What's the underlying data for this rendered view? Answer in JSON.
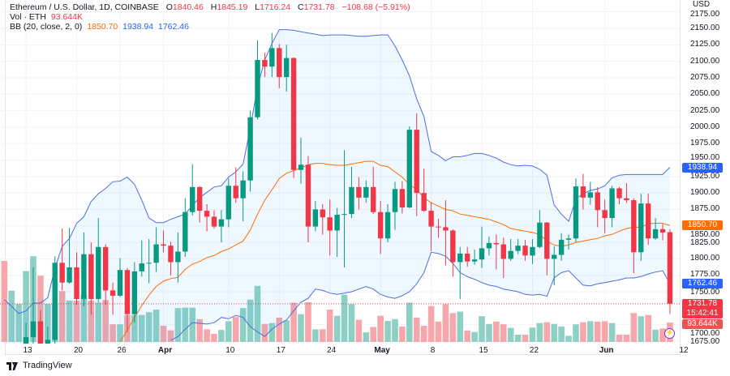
{
  "legend": {
    "symbol": "Ethereum / U.S. Dollar, 1D, COINBASE",
    "o_label": "O",
    "o": "1840.46",
    "h_label": "H",
    "h": "1845.19",
    "l_label": "L",
    "l": "1716.24",
    "c_label": "C",
    "c": "1731.78",
    "change": "−108.68 (−5.91%)",
    "vol_label": "Vol · ETH",
    "vol": "93.644K",
    "bb_label": "BB (20, close, 2, 0)",
    "bb_basis": "1850.70",
    "bb_upper": "1938.94",
    "bb_lower": "1762.46"
  },
  "axis": {
    "currency": "USD",
    "price_ticks": [
      "2175.00",
      "2150.00",
      "2125.00",
      "2100.00",
      "2075.00",
      "2050.00",
      "2025.00",
      "2000.00",
      "1975.00",
      "1950.00",
      "1925.00",
      "1900.00",
      "1875.00",
      "1850.00",
      "1825.00",
      "1800.00",
      "1775.00",
      "1750.00",
      "1700.00",
      "1675.00"
    ],
    "time_labels": [
      {
        "text": "13",
        "date": "Mar 13",
        "bold": false
      },
      {
        "text": "20",
        "date": "Mar 20",
        "bold": false
      },
      {
        "text": "26",
        "date": "Mar 26",
        "bold": false
      },
      {
        "text": "Apr",
        "date": "Apr 1",
        "bold": true
      },
      {
        "text": "10",
        "date": "Apr 10",
        "bold": false
      },
      {
        "text": "17",
        "date": "Apr 17",
        "bold": false
      },
      {
        "text": "24",
        "date": "Apr 24",
        "bold": false
      },
      {
        "text": "May",
        "date": "May 1",
        "bold": true
      },
      {
        "text": "8",
        "date": "May 8",
        "bold": false
      },
      {
        "text": "15",
        "date": "May 15",
        "bold": false
      },
      {
        "text": "22",
        "date": "May 22",
        "bold": false
      },
      {
        "text": "Jun",
        "date": "Jun 1",
        "bold": true
      },
      {
        "text": "12",
        "date": "Jun 12",
        "bold": false
      }
    ]
  },
  "badges": {
    "upper": {
      "value": "1938.94",
      "color": "#2962ff"
    },
    "basis": {
      "value": "1850.70",
      "color": "#ff6d00"
    },
    "lower": {
      "value": "1762.46",
      "color": "#2962ff"
    },
    "last": {
      "value": "1731.78",
      "countdown": "15:42:41",
      "color": "#f23645"
    },
    "volume": {
      "value": "93.644K",
      "color": "#ef5350"
    }
  },
  "colors": {
    "up": "#089981",
    "down": "#f23645",
    "vol_up": "#8fd0c5",
    "vol_down": "#f7a6ab",
    "bb_band": "#4c6fe0",
    "bb_basis": "#ff6d00",
    "bb_fill": "rgba(33,150,243,0.07)"
  },
  "brand": "TradingView",
  "chart_data": {
    "type": "candlestick",
    "title": "Ethereum / U.S. Dollar, 1D, COINBASE",
    "ylabel": "USD",
    "ylim": [
      1660,
      2180
    ],
    "volume_unit": "K ETH",
    "grid": true,
    "candles": [
      {
        "d": "Mar 10",
        "v": 390,
        "up": false
      },
      {
        "d": "Mar 11",
        "v": 247,
        "up": true
      },
      {
        "d": "Mar 12",
        "v": 183,
        "up": true
      },
      {
        "d": "Mar 13",
        "o": 1590,
        "h": 1703,
        "l": 1580,
        "c": 1681,
        "v": 341
      },
      {
        "d": "Mar 14",
        "o": 1681,
        "h": 1787,
        "l": 1660,
        "c": 1705,
        "v": 413
      },
      {
        "d": "Mar 15",
        "o": 1705,
        "h": 1723,
        "l": 1640,
        "c": 1650,
        "v": 319
      },
      {
        "d": "Mar 16",
        "o": 1650,
        "h": 1697,
        "l": 1640,
        "c": 1677,
        "v": 183
      },
      {
        "d": "Mar 17",
        "o": 1677,
        "h": 1804,
        "l": 1670,
        "c": 1794,
        "v": 183
      },
      {
        "d": "Mar 18",
        "o": 1794,
        "h": 1846,
        "l": 1752,
        "c": 1764,
        "v": 245
      },
      {
        "d": "Mar 19",
        "o": 1764,
        "h": 1847,
        "l": 1762,
        "c": 1787,
        "v": 199
      },
      {
        "d": "Mar 20",
        "o": 1787,
        "h": 1810,
        "l": 1730,
        "c": 1739,
        "v": 199
      },
      {
        "d": "Mar 21",
        "o": 1739,
        "h": 1840,
        "l": 1728,
        "c": 1807,
        "v": 228
      },
      {
        "d": "Mar 22",
        "o": 1807,
        "h": 1825,
        "l": 1715,
        "c": 1739,
        "v": 199
      },
      {
        "d": "Mar 23",
        "o": 1739,
        "h": 1862,
        "l": 1734,
        "c": 1818,
        "v": 190
      },
      {
        "d": "Mar 24",
        "o": 1818,
        "h": 1822,
        "l": 1730,
        "c": 1752,
        "v": 202
      },
      {
        "d": "Mar 25",
        "o": 1752,
        "h": 1764,
        "l": 1715,
        "c": 1744,
        "v": 85
      },
      {
        "d": "Mar 26",
        "o": 1744,
        "h": 1801,
        "l": 1742,
        "c": 1783,
        "v": 85
      },
      {
        "d": "Mar 27",
        "o": 1783,
        "h": 1786,
        "l": 1689,
        "c": 1716,
        "v": 130
      },
      {
        "d": "Mar 28",
        "o": 1716,
        "h": 1795,
        "l": 1703,
        "c": 1781,
        "v": 130
      },
      {
        "d": "Mar 29",
        "o": 1781,
        "h": 1828,
        "l": 1773,
        "c": 1793,
        "v": 130
      },
      {
        "d": "Mar 30",
        "o": 1793,
        "h": 1830,
        "l": 1763,
        "c": 1794,
        "v": 143
      },
      {
        "d": "Mar 31",
        "o": 1794,
        "h": 1848,
        "l": 1780,
        "c": 1822,
        "v": 156
      },
      {
        "d": "Apr 1",
        "o": 1822,
        "h": 1843,
        "l": 1810,
        "c": 1820,
        "v": 78
      },
      {
        "d": "Apr 2",
        "o": 1820,
        "h": 1826,
        "l": 1775,
        "c": 1795,
        "v": 56
      },
      {
        "d": "Apr 3",
        "o": 1795,
        "h": 1840,
        "l": 1764,
        "c": 1811,
        "v": 163
      },
      {
        "d": "Apr 4",
        "o": 1811,
        "h": 1892,
        "l": 1803,
        "c": 1871,
        "v": 165
      },
      {
        "d": "Apr 5",
        "o": 1871,
        "h": 1944,
        "l": 1866,
        "c": 1909,
        "v": 165
      },
      {
        "d": "Apr 6",
        "o": 1909,
        "h": 1910,
        "l": 1855,
        "c": 1873,
        "v": 110
      },
      {
        "d": "Apr 7",
        "o": 1873,
        "h": 1883,
        "l": 1842,
        "c": 1864,
        "v": 61
      },
      {
        "d": "Apr 8",
        "o": 1864,
        "h": 1874,
        "l": 1846,
        "c": 1849,
        "v": 39
      },
      {
        "d": "Apr 9",
        "o": 1849,
        "h": 1874,
        "l": 1825,
        "c": 1860,
        "v": 58
      },
      {
        "d": "Apr 10",
        "o": 1860,
        "h": 1922,
        "l": 1848,
        "c": 1911,
        "v": 100
      },
      {
        "d": "Apr 11",
        "o": 1911,
        "h": 1939,
        "l": 1885,
        "c": 1892,
        "v": 120
      },
      {
        "d": "Apr 12",
        "o": 1892,
        "h": 1933,
        "l": 1857,
        "c": 1919,
        "v": 163
      },
      {
        "d": "Apr 13",
        "o": 1919,
        "h": 2025,
        "l": 1902,
        "c": 2015,
        "v": 204
      },
      {
        "d": "Apr 14",
        "o": 2015,
        "h": 2132,
        "l": 2012,
        "c": 2102,
        "v": 270
      },
      {
        "d": "Apr 15",
        "o": 2102,
        "h": 2113,
        "l": 2076,
        "c": 2092,
        "v": 87
      },
      {
        "d": "Apr 16",
        "o": 2092,
        "h": 2143,
        "l": 2076,
        "c": 2120,
        "v": 91
      },
      {
        "d": "Apr 17",
        "o": 2120,
        "h": 2126,
        "l": 2059,
        "c": 2076,
        "v": 117
      },
      {
        "d": "Apr 18",
        "o": 2076,
        "h": 2125,
        "l": 2054,
        "c": 2105,
        "v": 104
      },
      {
        "d": "Apr 19",
        "o": 2105,
        "h": 2106,
        "l": 1923,
        "c": 1935,
        "v": 189
      },
      {
        "d": "Apr 20",
        "o": 1935,
        "h": 1984,
        "l": 1914,
        "c": 1943,
        "v": 134
      },
      {
        "d": "Apr 21",
        "o": 1943,
        "h": 1956,
        "l": 1825,
        "c": 1849,
        "v": 191
      },
      {
        "d": "Apr 22",
        "o": 1849,
        "h": 1888,
        "l": 1842,
        "c": 1875,
        "v": 61
      },
      {
        "d": "Apr 23",
        "o": 1875,
        "h": 1883,
        "l": 1837,
        "c": 1863,
        "v": 61
      },
      {
        "d": "Apr 24",
        "o": 1863,
        "h": 1890,
        "l": 1805,
        "c": 1843,
        "v": 156
      },
      {
        "d": "Apr 25",
        "o": 1843,
        "h": 1877,
        "l": 1803,
        "c": 1867,
        "v": 126
      },
      {
        "d": "Apr 26",
        "o": 1867,
        "h": 1965,
        "l": 1787,
        "c": 1868,
        "v": 228
      },
      {
        "d": "Apr 27",
        "o": 1868,
        "h": 1940,
        "l": 1862,
        "c": 1909,
        "v": 182
      },
      {
        "d": "Apr 28",
        "o": 1909,
        "h": 1924,
        "l": 1875,
        "c": 1893,
        "v": 107
      },
      {
        "d": "Apr 29",
        "o": 1893,
        "h": 1919,
        "l": 1885,
        "c": 1909,
        "v": 46
      },
      {
        "d": "Apr 30",
        "o": 1909,
        "h": 1940,
        "l": 1868,
        "c": 1871,
        "v": 72
      },
      {
        "d": "May 1",
        "o": 1871,
        "h": 1888,
        "l": 1807,
        "c": 1831,
        "v": 126
      },
      {
        "d": "May 2",
        "o": 1831,
        "h": 1883,
        "l": 1825,
        "c": 1871,
        "v": 101
      },
      {
        "d": "May 3",
        "o": 1871,
        "h": 1917,
        "l": 1844,
        "c": 1906,
        "v": 110
      },
      {
        "d": "May 4",
        "o": 1906,
        "h": 1918,
        "l": 1869,
        "c": 1878,
        "v": 74
      },
      {
        "d": "May 5",
        "o": 1878,
        "h": 2001,
        "l": 1877,
        "c": 1996,
        "v": 189
      },
      {
        "d": "May 6",
        "o": 1996,
        "h": 2021,
        "l": 1865,
        "c": 1900,
        "v": 117
      },
      {
        "d": "May 7",
        "o": 1900,
        "h": 1937,
        "l": 1871,
        "c": 1873,
        "v": 78
      },
      {
        "d": "May 8",
        "o": 1873,
        "h": 1886,
        "l": 1812,
        "c": 1849,
        "v": 173
      },
      {
        "d": "May 9",
        "o": 1849,
        "h": 1861,
        "l": 1832,
        "c": 1848,
        "v": 98
      },
      {
        "d": "May 10",
        "o": 1848,
        "h": 1889,
        "l": 1790,
        "c": 1843,
        "v": 182
      },
      {
        "d": "May 11",
        "o": 1843,
        "h": 1845,
        "l": 1773,
        "c": 1795,
        "v": 139
      },
      {
        "d": "May 12",
        "o": 1795,
        "h": 1818,
        "l": 1739,
        "c": 1808,
        "v": 146
      },
      {
        "d": "May 13",
        "o": 1808,
        "h": 1818,
        "l": 1788,
        "c": 1796,
        "v": 55
      },
      {
        "d": "May 14",
        "o": 1796,
        "h": 1814,
        "l": 1791,
        "c": 1799,
        "v": 48
      },
      {
        "d": "May 15",
        "o": 1799,
        "h": 1849,
        "l": 1786,
        "c": 1816,
        "v": 124
      },
      {
        "d": "May 16",
        "o": 1816,
        "h": 1834,
        "l": 1805,
        "c": 1824,
        "v": 87
      },
      {
        "d": "May 17",
        "o": 1824,
        "h": 1837,
        "l": 1784,
        "c": 1822,
        "v": 98
      },
      {
        "d": "May 18",
        "o": 1822,
        "h": 1832,
        "l": 1771,
        "c": 1800,
        "v": 85
      },
      {
        "d": "May 19",
        "o": 1800,
        "h": 1830,
        "l": 1797,
        "c": 1812,
        "v": 68
      },
      {
        "d": "May 20",
        "o": 1812,
        "h": 1830,
        "l": 1807,
        "c": 1820,
        "v": 35
      },
      {
        "d": "May 21",
        "o": 1820,
        "h": 1829,
        "l": 1797,
        "c": 1805,
        "v": 35
      },
      {
        "d": "May 22",
        "o": 1805,
        "h": 1830,
        "l": 1792,
        "c": 1818,
        "v": 69
      },
      {
        "d": "May 23",
        "o": 1818,
        "h": 1874,
        "l": 1816,
        "c": 1855,
        "v": 91
      },
      {
        "d": "May 24",
        "o": 1855,
        "h": 1856,
        "l": 1775,
        "c": 1800,
        "v": 95
      },
      {
        "d": "May 25",
        "o": 1800,
        "h": 1819,
        "l": 1760,
        "c": 1806,
        "v": 87
      },
      {
        "d": "May 26",
        "o": 1806,
        "h": 1839,
        "l": 1797,
        "c": 1829,
        "v": 74
      },
      {
        "d": "May 27",
        "o": 1829,
        "h": 1837,
        "l": 1814,
        "c": 1831,
        "v": 30
      },
      {
        "d": "May 28",
        "o": 1831,
        "h": 1922,
        "l": 1825,
        "c": 1910,
        "v": 85
      },
      {
        "d": "May 29",
        "o": 1910,
        "h": 1929,
        "l": 1875,
        "c": 1893,
        "v": 95
      },
      {
        "d": "May 30",
        "o": 1893,
        "h": 1917,
        "l": 1882,
        "c": 1901,
        "v": 100
      },
      {
        "d": "May 31",
        "o": 1901,
        "h": 1909,
        "l": 1848,
        "c": 1874,
        "v": 98
      },
      {
        "d": "Jun 1",
        "o": 1874,
        "h": 1890,
        "l": 1839,
        "c": 1862,
        "v": 100
      },
      {
        "d": "Jun 2",
        "o": 1862,
        "h": 1911,
        "l": 1848,
        "c": 1907,
        "v": 91
      },
      {
        "d": "Jun 3",
        "o": 1907,
        "h": 1909,
        "l": 1883,
        "c": 1892,
        "v": 35
      },
      {
        "d": "Jun 4",
        "o": 1892,
        "h": 1915,
        "l": 1885,
        "c": 1889,
        "v": 35
      },
      {
        "d": "Jun 5",
        "o": 1889,
        "h": 1892,
        "l": 1778,
        "c": 1810,
        "v": 139
      },
      {
        "d": "Jun 6",
        "o": 1810,
        "h": 1899,
        "l": 1797,
        "c": 1884,
        "v": 124
      },
      {
        "d": "Jun 7",
        "o": 1884,
        "h": 1899,
        "l": 1821,
        "c": 1831,
        "v": 130
      },
      {
        "d": "Jun 8",
        "o": 1831,
        "h": 1862,
        "l": 1829,
        "c": 1845,
        "v": 59
      },
      {
        "d": "Jun 9",
        "o": 1845,
        "h": 1853,
        "l": 1828,
        "c": 1840,
        "v": 65
      },
      {
        "d": "Jun 10",
        "o": 1840.46,
        "h": 1845.19,
        "l": 1716.24,
        "c": 1731.78,
        "v": 93.644
      }
    ],
    "bb_upper": [
      1738,
      1728,
      1717,
      1721,
      1733,
      1733,
      1741,
      1786,
      1819,
      1831,
      1854,
      1864,
      1887,
      1899,
      1907,
      1917,
      1918,
      1924,
      1913,
      1889,
      1862,
      1855,
      1855,
      1860,
      1864,
      1868,
      1881,
      1893,
      1901,
      1909,
      1911,
      1924,
      1932,
      1944,
      1999,
      2061,
      2102,
      2127,
      2148,
      2148,
      2147,
      2145,
      2143,
      2141,
      2139,
      2140,
      2140,
      2140,
      2139,
      2138,
      2138,
      2139,
      2140,
      2140,
      2123,
      2102,
      2078,
      2043,
      2016,
      1963,
      1957,
      1949,
      1955,
      1955,
      1957,
      1960,
      1960,
      1957,
      1953,
      1947,
      1943,
      1941,
      1942,
      1941,
      1936,
      1927,
      1882,
      1868,
      1857,
      1891,
      1899,
      1904,
      1906,
      1911,
      1923,
      1927,
      1928,
      1928,
      1928,
      1928,
      1928,
      1928,
      1938.94
    ],
    "bb_basis": [
      null,
      null,
      null,
      null,
      null,
      null,
      null,
      null,
      null,
      null,
      null,
      null,
      null,
      null,
      null,
      null,
      1674,
      1692,
      1711,
      1729,
      1745,
      1758,
      1766,
      1770,
      1772,
      1784,
      1792,
      1796,
      1802,
      1805,
      1811,
      1815,
      1821,
      1827,
      1844,
      1868,
      1889,
      1905,
      1922,
      1930,
      1934,
      1938,
      1943,
      1945,
      1945,
      1943,
      1942,
      1942,
      1944,
      1946,
      1948,
      1948,
      1942,
      1940,
      1932,
      1924,
      1913,
      1905,
      1893,
      1885,
      1880,
      1875,
      1873,
      1868,
      1866,
      1864,
      1862,
      1860,
      1856,
      1852,
      1846,
      1844,
      1842,
      1840,
      1837,
      1827,
      1821,
      1819,
      1821,
      1825,
      1827,
      1829,
      1831,
      1835,
      1837,
      1842,
      1846,
      1848,
      1848,
      1853,
      1854,
      1854,
      1850.7
    ],
    "bb_lower": [
      null,
      null,
      null,
      null,
      null,
      null,
      null,
      null,
      null,
      null,
      null,
      null,
      null,
      null,
      null,
      null,
      null,
      null,
      null,
      null,
      null,
      null,
      null,
      1676,
      1682,
      1693,
      1703,
      1702,
      1701,
      1703,
      1711,
      1709,
      1714,
      1711,
      1697,
      1689,
      1682,
      1693,
      1701,
      1707,
      1721,
      1734,
      1740,
      1754,
      1752,
      1748,
      1746,
      1748,
      1750,
      1754,
      1758,
      1754,
      1746,
      1742,
      1740,
      1744,
      1750,
      1762,
      1779,
      1810,
      1808,
      1804,
      1793,
      1779,
      1773,
      1769,
      1764,
      1760,
      1758,
      1754,
      1752,
      1750,
      1746,
      1745,
      1746,
      1743,
      1771,
      1779,
      1782,
      1771,
      1760,
      1759,
      1762,
      1764,
      1766,
      1768,
      1771,
      1771,
      1773,
      1777,
      1780,
      1782,
      1762.46
    ]
  }
}
